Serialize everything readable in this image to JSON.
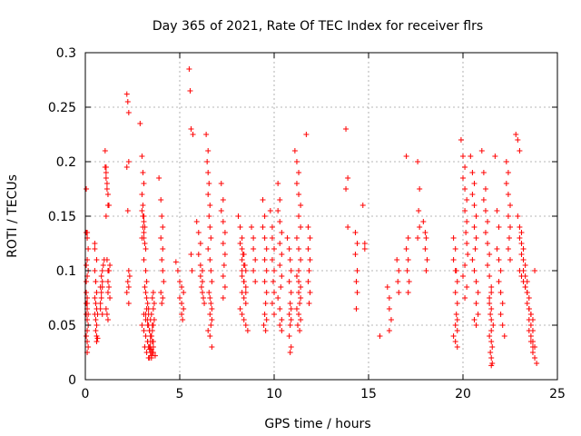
{
  "chart_data": {
    "type": "scatter",
    "title": "Day 365 of 2021, Rate Of TEC Index for receiver flrs",
    "xlabel": "GPS time / hours",
    "ylabel": "ROTI / TECUs",
    "xlim": [
      0,
      25
    ],
    "ylim": [
      0,
      0.3
    ],
    "x_ticks": [
      0,
      5,
      10,
      15,
      20,
      25
    ],
    "y_ticks": [
      0,
      0.05,
      0.1,
      0.15,
      0.2,
      0.25,
      0.3
    ],
    "x_tick_labels": [
      "0",
      "5",
      "10",
      "15",
      "20",
      "25"
    ],
    "y_tick_labels": [
      "0",
      "0.05",
      "0.1",
      "0.15",
      "0.2",
      "0.25",
      "0.3"
    ],
    "grid": true,
    "marker": "plus",
    "marker_color": "#ff0000",
    "series": [
      {
        "x": [
          0.05,
          0.05,
          0.1,
          0.05,
          0.1,
          0.05,
          0.1,
          0.05,
          0.1,
          0.05,
          0.1,
          0.15,
          0.1,
          0.05,
          0.1,
          0.15,
          0.1,
          0.15,
          0.1,
          0.05,
          0.15,
          0.1,
          0.15,
          0.1,
          0.5,
          0.5,
          0.5,
          0.55,
          0.6,
          0.5,
          0.55,
          0.6,
          0.5,
          0.55,
          0.6,
          0.55,
          0.6,
          0.65,
          0.6,
          0.65,
          0.55,
          0.6,
          0.8,
          0.85,
          0.8,
          0.9,
          0.85,
          0.8,
          0.9,
          0.85,
          0.9,
          0.95,
          0.9,
          1.0,
          1.05,
          1.1,
          1.1,
          1.15,
          1.2,
          1.1,
          1.15,
          1.2,
          1.2,
          1.25,
          1.2,
          1.3,
          1.1,
          1.15,
          1.2,
          1.25,
          1.3,
          1.05,
          1.1,
          1.15,
          1.2,
          1.25,
          2.2,
          2.25,
          2.3,
          2.3,
          2.2,
          2.25,
          2.3,
          2.35,
          2.25,
          2.3,
          2.2,
          2.3,
          2.9,
          3.0,
          3.05,
          3.1,
          3.0,
          3.05,
          3.1,
          3.15,
          3.1,
          3.15,
          3.2,
          3.1,
          3.2,
          3.25,
          3.15,
          3.2,
          3.25,
          3.3,
          3.35,
          3.2,
          3.3,
          3.35,
          3.4,
          3.45,
          3.3,
          3.35,
          3.4,
          3.45,
          3.5,
          3.4,
          3.5,
          3.55,
          3.6,
          3.45,
          3.5,
          3.55,
          3.6,
          3.65,
          3.5,
          3.6,
          3.65,
          3.55,
          3.6,
          3.0,
          3.1,
          3.2,
          3.3,
          3.4,
          3.5,
          3.6,
          3.7,
          3.1,
          3.2,
          3.3,
          3.4,
          3.5,
          3.6,
          3.25,
          3.35,
          3.45,
          3.55,
          3.15,
          3.25,
          3.35,
          3.45,
          3.55,
          3.0,
          3.05,
          3.1,
          3.05,
          3.1,
          3.0,
          3.9,
          4.0,
          4.05,
          4.1,
          4.0,
          4.1,
          4.05,
          4.1,
          4.15,
          4.0,
          4.1,
          4.05,
          4.8,
          4.9,
          5.0,
          5.1,
          5.2,
          5.0,
          5.1,
          5.2,
          5.1,
          5.15,
          5.5,
          5.55,
          5.6,
          5.7,
          5.6,
          5.65,
          5.9,
          6.0,
          6.1,
          6.0,
          6.1,
          6.2,
          6.1,
          6.2,
          6.15,
          6.2,
          6.25,
          6.3,
          6.4,
          6.5,
          6.45,
          6.5,
          6.55,
          6.5,
          6.6,
          6.55,
          6.6,
          6.65,
          6.5,
          6.6,
          6.65,
          6.7,
          6.55,
          6.6,
          6.65,
          6.7,
          6.6,
          6.7,
          6.65,
          6.5,
          6.6,
          6.7,
          7.2,
          7.3,
          7.2,
          7.3,
          7.4,
          7.3,
          7.4,
          7.35,
          7.3,
          7.4,
          7.3,
          8.1,
          8.2,
          8.3,
          8.2,
          8.3,
          8.4,
          8.3,
          8.4,
          8.5,
          8.3,
          8.4,
          8.5,
          8.3,
          8.4,
          8.5,
          8.2,
          8.3,
          8.4,
          8.5,
          8.6,
          8.3,
          8.4,
          8.5,
          8.35,
          8.45,
          8.8,
          8.9,
          8.9,
          9.0,
          8.9,
          9.0,
          9.4,
          9.5,
          9.4,
          9.5,
          9.6,
          9.5,
          9.6,
          9.5,
          9.6,
          9.55,
          9.5,
          9.6,
          9.45,
          9.55,
          9.8,
          9.9,
          9.9,
          10.0,
          9.9,
          10.0,
          9.95,
          10.0,
          9.9,
          10.0,
          10.2,
          10.3,
          10.2,
          10.3,
          10.4,
          10.3,
          10.4,
          10.3,
          10.4,
          10.35,
          10.2,
          10.3,
          10.4,
          10.3,
          10.4,
          10.7,
          10.8,
          10.85,
          10.9,
          10.8,
          10.9,
          10.85,
          10.9,
          10.8,
          10.9,
          10.85,
          10.8,
          10.9,
          10.85,
          11.1,
          11.2,
          11.3,
          11.2,
          11.3,
          11.4,
          11.3,
          11.4,
          11.2,
          11.3,
          11.4,
          11.3,
          11.2,
          11.3,
          11.4,
          11.3,
          11.4,
          11.35,
          11.2,
          11.3,
          11.4,
          11.25,
          11.35,
          11.7,
          11.8,
          11.9,
          11.8,
          11.9,
          11.85,
          11.8,
          11.9,
          11.85,
          13.8,
          13.9,
          13.8,
          13.9,
          14.3,
          14.4,
          14.3,
          14.4,
          14.35,
          14.4,
          14.35,
          14.7,
          14.8,
          14.8,
          15.6,
          16.0,
          16.1,
          16.1,
          16.2,
          16.1,
          16.5,
          16.6,
          16.55,
          16.6,
          17.0,
          17.1,
          17.0,
          17.1,
          17.05,
          17.15,
          17.1,
          17.6,
          17.7,
          17.65,
          17.7,
          17.6,
          17.9,
          18.0,
          18.05,
          18.0,
          18.1,
          18.05,
          19.5,
          19.6,
          19.5,
          19.6,
          19.7,
          19.6,
          19.7,
          19.65,
          19.7,
          19.6,
          19.7,
          19.5,
          19.6,
          19.7,
          19.65,
          19.9,
          20.0,
          20.1,
          20.0,
          20.1,
          20.2,
          20.1,
          20.2,
          20.15,
          20.2,
          20.25,
          20.1,
          20.0,
          20.2,
          20.1,
          20.4,
          20.5,
          20.6,
          20.5,
          20.6,
          20.7,
          20.6,
          20.7,
          20.65,
          20.5,
          20.6,
          20.7,
          20.8,
          20.7,
          20.8,
          20.6,
          20.7,
          21.0,
          21.1,
          21.2,
          21.1,
          21.2,
          21.3,
          21.2,
          21.3,
          21.4,
          21.3,
          21.4,
          21.5,
          21.4,
          21.5,
          21.45,
          21.5,
          21.6,
          21.5,
          21.4,
          21.5,
          21.55,
          21.45,
          21.5,
          21.55,
          21.5,
          21.4,
          21.5,
          21.7,
          21.8,
          21.9,
          21.8,
          21.9,
          22.0,
          21.9,
          22.0,
          22.1,
          22.0,
          22.1,
          22.2,
          22.3,
          22.4,
          22.3,
          22.4,
          22.5,
          22.4,
          22.5,
          22.45,
          22.4,
          22.5,
          22.8,
          22.9,
          23.0,
          22.9,
          23.0,
          23.1,
          23.0,
          23.1,
          23.2,
          23.1,
          23.2,
          23.3,
          23.2,
          23.3,
          23.4,
          23.3,
          23.4,
          23.5,
          23.4,
          23.5,
          23.6,
          23.5,
          23.6,
          23.7,
          23.6,
          23.7,
          23.8,
          23.7,
          23.8,
          23.9,
          23.0,
          23.1,
          23.2,
          23.3,
          23.4,
          23.5,
          23.6,
          23.7,
          23.5,
          23.6,
          23.7,
          23.8
        ],
        "y": [
          0.175,
          0.135,
          0.13,
          0.105,
          0.095,
          0.08,
          0.075,
          0.07,
          0.065,
          0.06,
          0.055,
          0.05,
          0.045,
          0.04,
          0.035,
          0.03,
          0.025,
          0.06,
          0.07,
          0.09,
          0.1,
          0.11,
          0.12,
          0.135,
          0.125,
          0.12,
          0.1,
          0.09,
          0.08,
          0.075,
          0.07,
          0.065,
          0.06,
          0.055,
          0.05,
          0.045,
          0.04,
          0.038,
          0.035,
          0.06,
          0.09,
          0.11,
          0.07,
          0.075,
          0.065,
          0.06,
          0.08,
          0.085,
          0.09,
          0.095,
          0.1,
          0.105,
          0.085,
          0.11,
          0.21,
          0.195,
          0.185,
          0.175,
          0.16,
          0.15,
          0.11,
          0.1,
          0.09,
          0.085,
          0.08,
          0.075,
          0.065,
          0.06,
          0.055,
          0.1,
          0.105,
          0.195,
          0.19,
          0.18,
          0.17,
          0.16,
          0.262,
          0.255,
          0.245,
          0.2,
          0.195,
          0.155,
          0.1,
          0.095,
          0.09,
          0.085,
          0.08,
          0.07,
          0.235,
          0.205,
          0.19,
          0.18,
          0.17,
          0.16,
          0.15,
          0.14,
          0.13,
          0.125,
          0.12,
          0.11,
          0.1,
          0.09,
          0.085,
          0.08,
          0.075,
          0.07,
          0.065,
          0.06,
          0.055,
          0.05,
          0.045,
          0.04,
          0.035,
          0.03,
          0.028,
          0.025,
          0.022,
          0.02,
          0.02,
          0.025,
          0.03,
          0.035,
          0.04,
          0.045,
          0.05,
          0.055,
          0.06,
          0.065,
          0.07,
          0.075,
          0.08,
          0.05,
          0.045,
          0.04,
          0.035,
          0.03,
          0.028,
          0.025,
          0.022,
          0.06,
          0.055,
          0.05,
          0.045,
          0.04,
          0.035,
          0.065,
          0.06,
          0.055,
          0.05,
          0.03,
          0.025,
          0.02,
          0.03,
          0.035,
          0.155,
          0.15,
          0.145,
          0.14,
          0.135,
          0.13,
          0.185,
          0.165,
          0.15,
          0.14,
          0.13,
          0.12,
          0.11,
          0.1,
          0.09,
          0.08,
          0.075,
          0.07,
          0.108,
          0.1,
          0.09,
          0.085,
          0.08,
          0.075,
          0.07,
          0.065,
          0.06,
          0.055,
          0.285,
          0.265,
          0.23,
          0.225,
          0.115,
          0.1,
          0.145,
          0.135,
          0.125,
          0.115,
          0.105,
          0.1,
          0.095,
          0.09,
          0.085,
          0.08,
          0.075,
          0.07,
          0.225,
          0.21,
          0.2,
          0.19,
          0.18,
          0.17,
          0.16,
          0.15,
          0.14,
          0.13,
          0.12,
          0.11,
          0.1,
          0.09,
          0.08,
          0.075,
          0.07,
          0.065,
          0.06,
          0.055,
          0.05,
          0.045,
          0.04,
          0.03,
          0.18,
          0.165,
          0.155,
          0.145,
          0.135,
          0.125,
          0.115,
          0.105,
          0.095,
          0.085,
          0.075,
          0.15,
          0.14,
          0.13,
          0.125,
          0.12,
          0.115,
          0.11,
          0.105,
          0.1,
          0.095,
          0.09,
          0.085,
          0.08,
          0.075,
          0.07,
          0.065,
          0.06,
          0.055,
          0.05,
          0.045,
          0.1,
          0.09,
          0.08,
          0.115,
          0.105,
          0.14,
          0.13,
          0.12,
          0.11,
          0.1,
          0.09,
          0.165,
          0.15,
          0.14,
          0.13,
          0.12,
          0.11,
          0.1,
          0.09,
          0.08,
          0.07,
          0.06,
          0.055,
          0.05,
          0.045,
          0.155,
          0.14,
          0.13,
          0.12,
          0.11,
          0.1,
          0.09,
          0.08,
          0.07,
          0.06,
          0.18,
          0.165,
          0.155,
          0.145,
          0.135,
          0.125,
          0.115,
          0.105,
          0.095,
          0.085,
          0.075,
          0.065,
          0.055,
          0.05,
          0.045,
          0.13,
          0.12,
          0.11,
          0.1,
          0.09,
          0.08,
          0.07,
          0.065,
          0.06,
          0.055,
          0.05,
          0.04,
          0.03,
          0.025,
          0.21,
          0.2,
          0.19,
          0.18,
          0.17,
          0.16,
          0.15,
          0.14,
          0.13,
          0.12,
          0.11,
          0.1,
          0.095,
          0.09,
          0.085,
          0.08,
          0.075,
          0.07,
          0.065,
          0.06,
          0.055,
          0.05,
          0.045,
          0.225,
          0.14,
          0.13,
          0.12,
          0.11,
          0.1,
          0.09,
          0.08,
          0.07,
          0.23,
          0.185,
          0.175,
          0.14,
          0.135,
          0.125,
          0.115,
          0.1,
          0.09,
          0.08,
          0.065,
          0.16,
          0.125,
          0.12,
          0.04,
          0.085,
          0.075,
          0.065,
          0.055,
          0.045,
          0.11,
          0.1,
          0.09,
          0.08,
          0.205,
          0.13,
          0.12,
          0.11,
          0.1,
          0.09,
          0.08,
          0.2,
          0.175,
          0.155,
          0.14,
          0.13,
          0.145,
          0.135,
          0.13,
          0.12,
          0.11,
          0.1,
          0.13,
          0.12,
          0.11,
          0.1,
          0.09,
          0.08,
          0.07,
          0.06,
          0.055,
          0.05,
          0.045,
          0.04,
          0.035,
          0.03,
          0.1,
          0.22,
          0.205,
          0.195,
          0.185,
          0.175,
          0.165,
          0.155,
          0.145,
          0.135,
          0.125,
          0.115,
          0.105,
          0.095,
          0.085,
          0.075,
          0.205,
          0.19,
          0.18,
          0.17,
          0.16,
          0.15,
          0.14,
          0.13,
          0.12,
          0.11,
          0.1,
          0.09,
          0.08,
          0.07,
          0.06,
          0.055,
          0.05,
          0.21,
          0.19,
          0.175,
          0.165,
          0.155,
          0.145,
          0.135,
          0.125,
          0.115,
          0.105,
          0.095,
          0.085,
          0.075,
          0.065,
          0.06,
          0.055,
          0.05,
          0.045,
          0.04,
          0.035,
          0.03,
          0.025,
          0.02,
          0.015,
          0.013,
          0.07,
          0.08,
          0.205,
          0.155,
          0.14,
          0.12,
          0.11,
          0.1,
          0.09,
          0.08,
          0.07,
          0.06,
          0.05,
          0.04,
          0.2,
          0.19,
          0.18,
          0.17,
          0.16,
          0.15,
          0.14,
          0.13,
          0.12,
          0.11,
          0.225,
          0.22,
          0.21,
          0.15,
          0.14,
          0.135,
          0.13,
          0.125,
          0.12,
          0.115,
          0.11,
          0.105,
          0.1,
          0.095,
          0.09,
          0.085,
          0.08,
          0.075,
          0.07,
          0.065,
          0.06,
          0.055,
          0.05,
          0.045,
          0.04,
          0.035,
          0.03,
          0.025,
          0.02,
          0.015,
          0.1,
          0.095,
          0.09,
          0.085,
          0.08,
          0.065,
          0.06,
          0.055,
          0.045,
          0.035,
          0.03,
          0.1
        ]
      }
    ]
  }
}
